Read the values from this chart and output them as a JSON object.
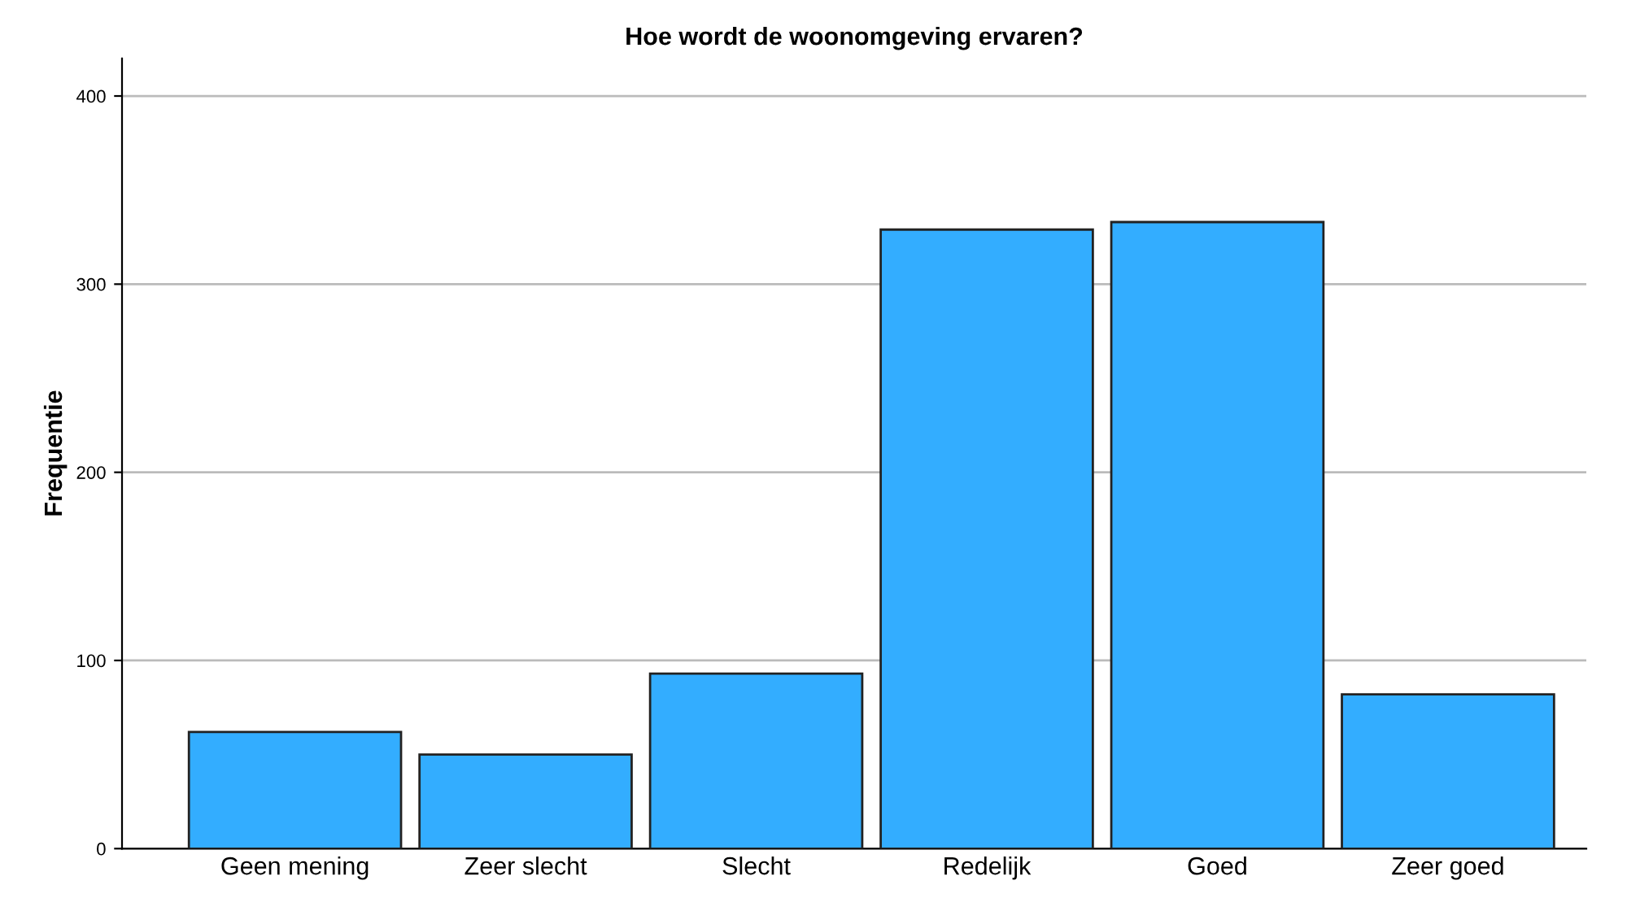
{
  "chart_data": {
    "type": "bar",
    "title": "Hoe wordt de woonomgeving ervaren?",
    "ylabel": "Frequentie",
    "categories": [
      "Geen mening",
      "Zeer slecht",
      "Slecht",
      "Redelijk",
      "Goed",
      "Zeer goed"
    ],
    "values": [
      62,
      50,
      93,
      329,
      333,
      82
    ],
    "color": "#33adff",
    "ylim": [
      0,
      420
    ],
    "yticks": [
      0,
      100,
      200,
      300,
      400
    ],
    "grid": "y"
  }
}
